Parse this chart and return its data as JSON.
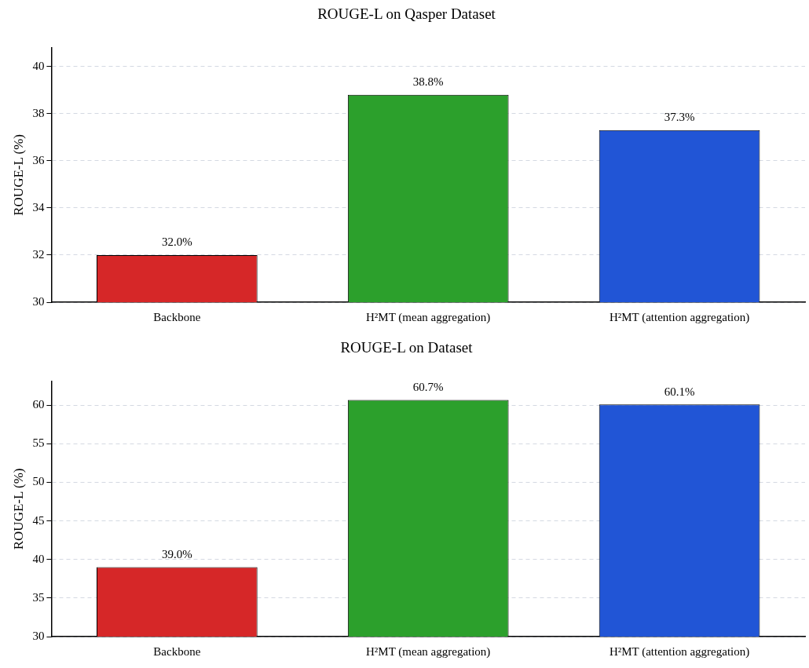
{
  "chart_data": [
    {
      "type": "bar",
      "title": "ROUGE-L on Qasper Dataset",
      "ylabel": "ROUGE-L (%)",
      "categories": [
        "Backbone",
        "H²MT (mean aggregation)",
        "H²MT (attention aggregation)"
      ],
      "values": [
        32.0,
        38.8,
        37.3
      ],
      "colors": [
        "#d62728",
        "#2ca02c",
        "#2155d6"
      ],
      "value_labels": [
        "32.0%",
        "38.8%",
        "37.3%"
      ],
      "ylim": [
        30,
        40.8
      ],
      "yticks": [
        30,
        32,
        34,
        36,
        38,
        40
      ],
      "grid": "y",
      "legend": false
    },
    {
      "type": "bar",
      "title": "ROUGE-L on Dataset",
      "ylabel": "ROUGE-L (%)",
      "categories": [
        "Backbone",
        "H²MT (mean aggregation)",
        "H²MT (attention aggregation)"
      ],
      "values": [
        39.0,
        60.7,
        60.1
      ],
      "colors": [
        "#d62728",
        "#2ca02c",
        "#2155d6"
      ],
      "value_labels": [
        "39.0%",
        "60.7%",
        "60.1%"
      ],
      "ylim": [
        30,
        63.1
      ],
      "yticks": [
        30,
        35,
        40,
        45,
        50,
        55,
        60
      ],
      "grid": "y",
      "legend": false
    }
  ]
}
